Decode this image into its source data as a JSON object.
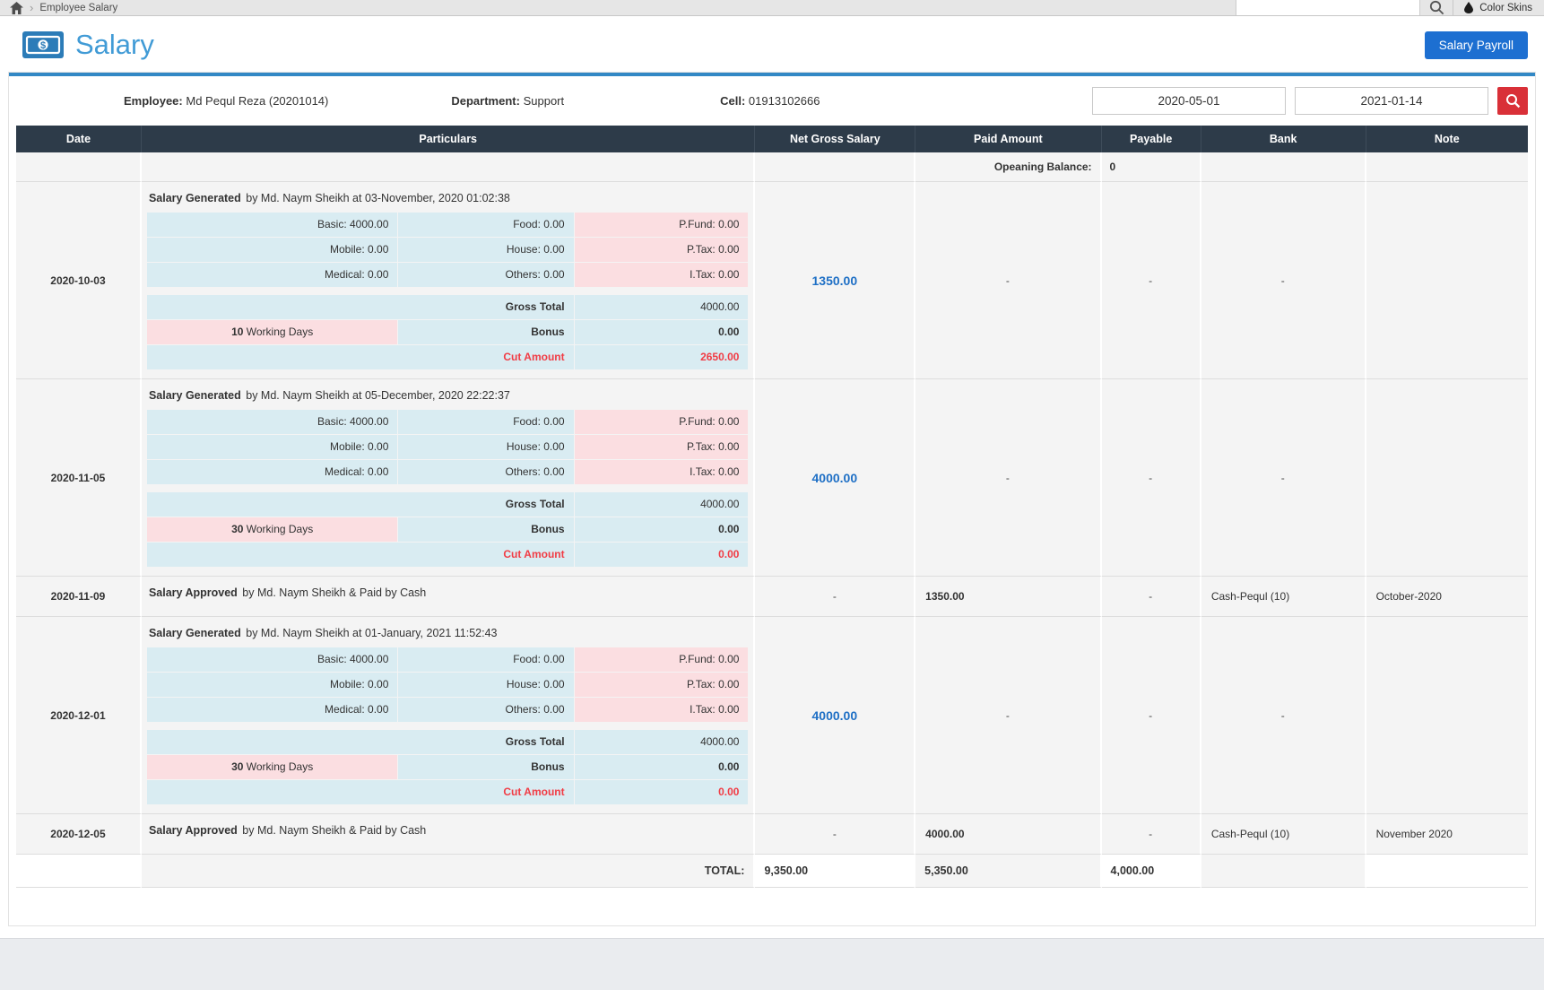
{
  "topbar": {
    "breadcrumb": "Employee Salary",
    "color_skins": "Color Skins",
    "icons": {
      "home": "home-icon",
      "search": "search-icon",
      "droplet": "color-skins-drop-icon"
    }
  },
  "header": {
    "title": "Salary",
    "icon": "money-icon",
    "payroll_button": "Salary Payroll"
  },
  "filter": {
    "employee_label": "Employee:",
    "employee_value": "Md Pequl Reza (20201014)",
    "department_label": "Department:",
    "department_value": "Support",
    "cell_label": "Cell:",
    "cell_value": "01913102666",
    "date_from": "2020-05-01",
    "date_to": "2021-01-14",
    "search_icon": "search-icon"
  },
  "table": {
    "columns": [
      "Date",
      "Particulars",
      "Net Gross Salary",
      "Paid Amount",
      "Payable",
      "Bank",
      "Note"
    ],
    "opening_balance_label": "Opeaning Balance:",
    "opening_balance_value": "0",
    "labels": {
      "gross_total": "Gross Total",
      "bonus": "Bonus",
      "cut_amount": "Cut Amount",
      "working_days": "Working Days"
    },
    "total_label": "TOTAL:",
    "totals": {
      "net_gross": "9,350.00",
      "paid": "5,350.00",
      "payable": "4,000.00"
    }
  },
  "rows": [
    {
      "type": "generated",
      "date": "2020-10-03",
      "action": "Salary Generated",
      "by": "by Md. Naym Sheikh at 03-November, 2020 01:02:38",
      "allowances": [
        [
          "Basic: 4000.00",
          "Food: 0.00",
          "P.Fund: 0.00"
        ],
        [
          "Mobile: 0.00",
          "House: 0.00",
          "P.Tax: 0.00"
        ],
        [
          "Medical: 0.00",
          "Others: 0.00",
          "I.Tax: 0.00"
        ]
      ],
      "gross_total": "4000.00",
      "working_days": "10",
      "bonus": "0.00",
      "cut_amount": "2650.00",
      "net_gross": "1350.00",
      "paid": "-",
      "payable": "-",
      "bank": "-",
      "note": ""
    },
    {
      "type": "generated",
      "date": "2020-11-05",
      "action": "Salary Generated",
      "by": "by Md. Naym Sheikh at 05-December, 2020 22:22:37",
      "allowances": [
        [
          "Basic: 4000.00",
          "Food: 0.00",
          "P.Fund: 0.00"
        ],
        [
          "Mobile: 0.00",
          "House: 0.00",
          "P.Tax: 0.00"
        ],
        [
          "Medical: 0.00",
          "Others: 0.00",
          "I.Tax: 0.00"
        ]
      ],
      "gross_total": "4000.00",
      "working_days": "30",
      "bonus": "0.00",
      "cut_amount": "0.00",
      "net_gross": "4000.00",
      "paid": "-",
      "payable": "-",
      "bank": "-",
      "note": ""
    },
    {
      "type": "approved",
      "date": "2020-11-09",
      "action": "Salary Approved",
      "by": "by Md. Naym Sheikh & Paid by Cash",
      "net_gross": "-",
      "paid": "1350.00",
      "payable": "-",
      "bank": "Cash-Pequl (10)",
      "note": "October-2020"
    },
    {
      "type": "generated",
      "date": "2020-12-01",
      "action": "Salary Generated",
      "by": "by Md. Naym Sheikh at 01-January, 2021 11:52:43",
      "allowances": [
        [
          "Basic: 4000.00",
          "Food: 0.00",
          "P.Fund: 0.00"
        ],
        [
          "Mobile: 0.00",
          "House: 0.00",
          "P.Tax: 0.00"
        ],
        [
          "Medical: 0.00",
          "Others: 0.00",
          "I.Tax: 0.00"
        ]
      ],
      "gross_total": "4000.00",
      "working_days": "30",
      "bonus": "0.00",
      "cut_amount": "0.00",
      "net_gross": "4000.00",
      "paid": "-",
      "payable": "-",
      "bank": "-",
      "note": ""
    },
    {
      "type": "approved",
      "date": "2020-12-05",
      "action": "Salary Approved",
      "by": "by Md. Naym Sheikh & Paid by Cash",
      "net_gross": "-",
      "paid": "4000.00",
      "payable": "-",
      "bank": "Cash-Pequl (10)",
      "note": "November 2020"
    }
  ]
}
